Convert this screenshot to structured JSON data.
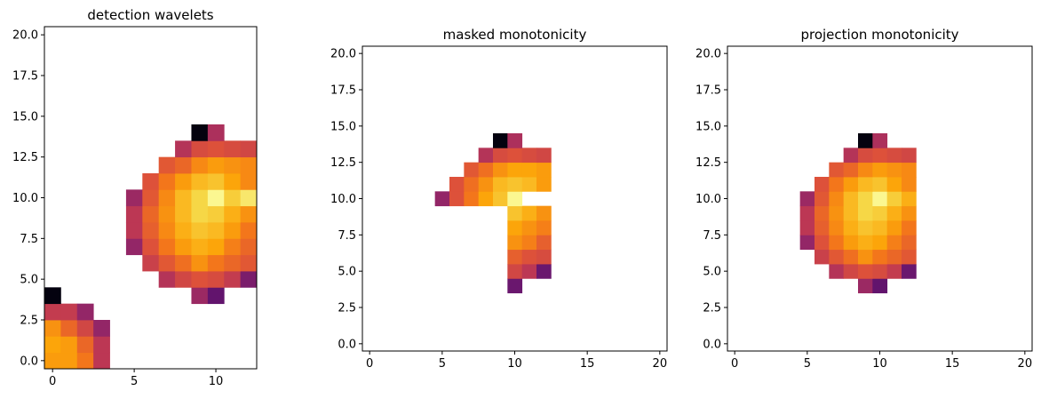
{
  "chart_data": [
    {
      "type": "heatmap",
      "title": "detection wavelets",
      "xlim": [
        -0.5,
        12.5
      ],
      "ylim": [
        -0.5,
        20.5
      ],
      "x_ticks": [
        0,
        5,
        10
      ],
      "y_ticks": [
        0.0,
        2.5,
        5.0,
        7.5,
        10.0,
        12.5,
        15.0,
        17.5,
        20.0
      ],
      "colormap": "inferno",
      "cells": [
        [
          0,
          0,
          0.78
        ],
        [
          1,
          0,
          0.78
        ],
        [
          2,
          0,
          0.7
        ],
        [
          3,
          0,
          0.5
        ],
        [
          0,
          1,
          0.8
        ],
        [
          1,
          1,
          0.78
        ],
        [
          2,
          1,
          0.66
        ],
        [
          3,
          1,
          0.5
        ],
        [
          0,
          2,
          0.76
        ],
        [
          1,
          2,
          0.66
        ],
        [
          2,
          2,
          0.56
        ],
        [
          3,
          2,
          0.4
        ],
        [
          0,
          3,
          0.52
        ],
        [
          1,
          3,
          0.52
        ],
        [
          2,
          3,
          0.4
        ],
        [
          0,
          4,
          0.02
        ],
        [
          9,
          4,
          0.42
        ],
        [
          10,
          4,
          0.28
        ],
        [
          7,
          5,
          0.48
        ],
        [
          8,
          5,
          0.56
        ],
        [
          9,
          5,
          0.6
        ],
        [
          10,
          5,
          0.58
        ],
        [
          11,
          5,
          0.52
        ],
        [
          12,
          5,
          0.34
        ],
        [
          6,
          6,
          0.54
        ],
        [
          7,
          6,
          0.62
        ],
        [
          8,
          6,
          0.68
        ],
        [
          9,
          6,
          0.76
        ],
        [
          10,
          6,
          0.7
        ],
        [
          11,
          6,
          0.66
        ],
        [
          12,
          6,
          0.62
        ],
        [
          5,
          7,
          0.4
        ],
        [
          6,
          7,
          0.6
        ],
        [
          7,
          7,
          0.7
        ],
        [
          8,
          7,
          0.78
        ],
        [
          9,
          7,
          0.82
        ],
        [
          10,
          7,
          0.8
        ],
        [
          11,
          7,
          0.72
        ],
        [
          12,
          7,
          0.66
        ],
        [
          5,
          8,
          0.5
        ],
        [
          6,
          8,
          0.64
        ],
        [
          7,
          8,
          0.74
        ],
        [
          8,
          8,
          0.82
        ],
        [
          9,
          8,
          0.86
        ],
        [
          10,
          8,
          0.84
        ],
        [
          11,
          8,
          0.78
        ],
        [
          12,
          8,
          0.7
        ],
        [
          5,
          9,
          0.5
        ],
        [
          6,
          9,
          0.66
        ],
        [
          7,
          9,
          0.76
        ],
        [
          8,
          9,
          0.84
        ],
        [
          9,
          9,
          0.9
        ],
        [
          10,
          9,
          0.88
        ],
        [
          11,
          9,
          0.82
        ],
        [
          12,
          9,
          0.76
        ],
        [
          5,
          10,
          0.42
        ],
        [
          6,
          10,
          0.62
        ],
        [
          7,
          10,
          0.74
        ],
        [
          8,
          10,
          0.84
        ],
        [
          9,
          10,
          0.9
        ],
        [
          10,
          10,
          0.98
        ],
        [
          11,
          10,
          0.88
        ],
        [
          12,
          10,
          0.94
        ],
        [
          6,
          11,
          0.6
        ],
        [
          7,
          11,
          0.7
        ],
        [
          8,
          11,
          0.78
        ],
        [
          9,
          11,
          0.84
        ],
        [
          10,
          11,
          0.86
        ],
        [
          11,
          11,
          0.8
        ],
        [
          12,
          11,
          0.74
        ],
        [
          7,
          12,
          0.62
        ],
        [
          8,
          12,
          0.66
        ],
        [
          9,
          12,
          0.74
        ],
        [
          10,
          12,
          0.78
        ],
        [
          11,
          12,
          0.76
        ],
        [
          12,
          12,
          0.74
        ],
        [
          8,
          13,
          0.48
        ],
        [
          9,
          13,
          0.58
        ],
        [
          10,
          13,
          0.6
        ],
        [
          11,
          13,
          0.58
        ],
        [
          12,
          13,
          0.56
        ],
        [
          9,
          14,
          0.02
        ],
        [
          10,
          14,
          0.46
        ]
      ]
    },
    {
      "type": "heatmap",
      "title": "masked monotonicity",
      "xlim": [
        -0.5,
        20.5
      ],
      "ylim": [
        -0.5,
        20.5
      ],
      "x_ticks": [
        0,
        5,
        10,
        15,
        20
      ],
      "y_ticks": [
        0.0,
        2.5,
        5.0,
        7.5,
        10.0,
        12.5,
        15.0,
        17.5,
        20.0
      ],
      "colormap": "inferno",
      "cells": [
        [
          10,
          4,
          0.3
        ],
        [
          10,
          5,
          0.56
        ],
        [
          11,
          5,
          0.5
        ],
        [
          12,
          5,
          0.3
        ],
        [
          10,
          6,
          0.64
        ],
        [
          11,
          6,
          0.6
        ],
        [
          12,
          6,
          0.58
        ],
        [
          10,
          7,
          0.76
        ],
        [
          11,
          7,
          0.72
        ],
        [
          12,
          7,
          0.64
        ],
        [
          10,
          8,
          0.8
        ],
        [
          11,
          8,
          0.76
        ],
        [
          12,
          8,
          0.72
        ],
        [
          10,
          9,
          0.86
        ],
        [
          11,
          9,
          0.82
        ],
        [
          12,
          9,
          0.76
        ],
        [
          5,
          10,
          0.4
        ],
        [
          6,
          10,
          0.6
        ],
        [
          7,
          10,
          0.7
        ],
        [
          8,
          10,
          0.8
        ],
        [
          9,
          10,
          0.86
        ],
        [
          10,
          10,
          0.98
        ],
        [
          6,
          11,
          0.6
        ],
        [
          7,
          11,
          0.68
        ],
        [
          8,
          11,
          0.76
        ],
        [
          9,
          11,
          0.84
        ],
        [
          10,
          11,
          0.86
        ],
        [
          11,
          11,
          0.84
        ],
        [
          12,
          11,
          0.78
        ],
        [
          7,
          12,
          0.62
        ],
        [
          8,
          12,
          0.68
        ],
        [
          9,
          12,
          0.76
        ],
        [
          10,
          12,
          0.8
        ],
        [
          11,
          12,
          0.8
        ],
        [
          12,
          12,
          0.78
        ],
        [
          8,
          13,
          0.48
        ],
        [
          9,
          13,
          0.58
        ],
        [
          10,
          13,
          0.6
        ],
        [
          11,
          13,
          0.58
        ],
        [
          12,
          13,
          0.56
        ],
        [
          9,
          14,
          0.02
        ],
        [
          10,
          14,
          0.46
        ]
      ]
    },
    {
      "type": "heatmap",
      "title": "projection monotonicity",
      "xlim": [
        -0.5,
        20.5
      ],
      "ylim": [
        -0.5,
        20.5
      ],
      "x_ticks": [
        0,
        5,
        10,
        15,
        20
      ],
      "y_ticks": [
        0.0,
        2.5,
        5.0,
        7.5,
        10.0,
        12.5,
        15.0,
        17.5,
        20.0
      ],
      "colormap": "inferno",
      "cells": [
        [
          9,
          4,
          0.42
        ],
        [
          10,
          4,
          0.28
        ],
        [
          7,
          5,
          0.48
        ],
        [
          8,
          5,
          0.56
        ],
        [
          9,
          5,
          0.6
        ],
        [
          10,
          5,
          0.58
        ],
        [
          11,
          5,
          0.52
        ],
        [
          12,
          5,
          0.3
        ],
        [
          6,
          6,
          0.54
        ],
        [
          7,
          6,
          0.62
        ],
        [
          8,
          6,
          0.68
        ],
        [
          9,
          6,
          0.76
        ],
        [
          10,
          6,
          0.7
        ],
        [
          11,
          6,
          0.66
        ],
        [
          12,
          6,
          0.62
        ],
        [
          5,
          7,
          0.4
        ],
        [
          6,
          7,
          0.6
        ],
        [
          7,
          7,
          0.7
        ],
        [
          8,
          7,
          0.78
        ],
        [
          9,
          7,
          0.82
        ],
        [
          10,
          7,
          0.8
        ],
        [
          11,
          7,
          0.72
        ],
        [
          12,
          7,
          0.66
        ],
        [
          5,
          8,
          0.5
        ],
        [
          6,
          8,
          0.64
        ],
        [
          7,
          8,
          0.74
        ],
        [
          8,
          8,
          0.82
        ],
        [
          9,
          8,
          0.86
        ],
        [
          10,
          8,
          0.84
        ],
        [
          11,
          8,
          0.78
        ],
        [
          12,
          8,
          0.7
        ],
        [
          5,
          9,
          0.5
        ],
        [
          6,
          9,
          0.66
        ],
        [
          7,
          9,
          0.76
        ],
        [
          8,
          9,
          0.84
        ],
        [
          9,
          9,
          0.9
        ],
        [
          10,
          9,
          0.88
        ],
        [
          11,
          9,
          0.82
        ],
        [
          12,
          9,
          0.76
        ],
        [
          5,
          10,
          0.42
        ],
        [
          6,
          10,
          0.62
        ],
        [
          7,
          10,
          0.74
        ],
        [
          8,
          10,
          0.84
        ],
        [
          9,
          10,
          0.9
        ],
        [
          10,
          10,
          0.98
        ],
        [
          11,
          10,
          0.88
        ],
        [
          12,
          10,
          0.82
        ],
        [
          6,
          11,
          0.6
        ],
        [
          7,
          11,
          0.7
        ],
        [
          8,
          11,
          0.78
        ],
        [
          9,
          11,
          0.84
        ],
        [
          10,
          11,
          0.86
        ],
        [
          11,
          11,
          0.8
        ],
        [
          12,
          11,
          0.74
        ],
        [
          7,
          12,
          0.62
        ],
        [
          8,
          12,
          0.66
        ],
        [
          9,
          12,
          0.74
        ],
        [
          10,
          12,
          0.78
        ],
        [
          11,
          12,
          0.76
        ],
        [
          12,
          12,
          0.74
        ],
        [
          8,
          13,
          0.48
        ],
        [
          9,
          13,
          0.58
        ],
        [
          10,
          13,
          0.6
        ],
        [
          11,
          13,
          0.58
        ],
        [
          12,
          13,
          0.56
        ],
        [
          9,
          14,
          0.02
        ],
        [
          10,
          14,
          0.46
        ]
      ]
    }
  ]
}
